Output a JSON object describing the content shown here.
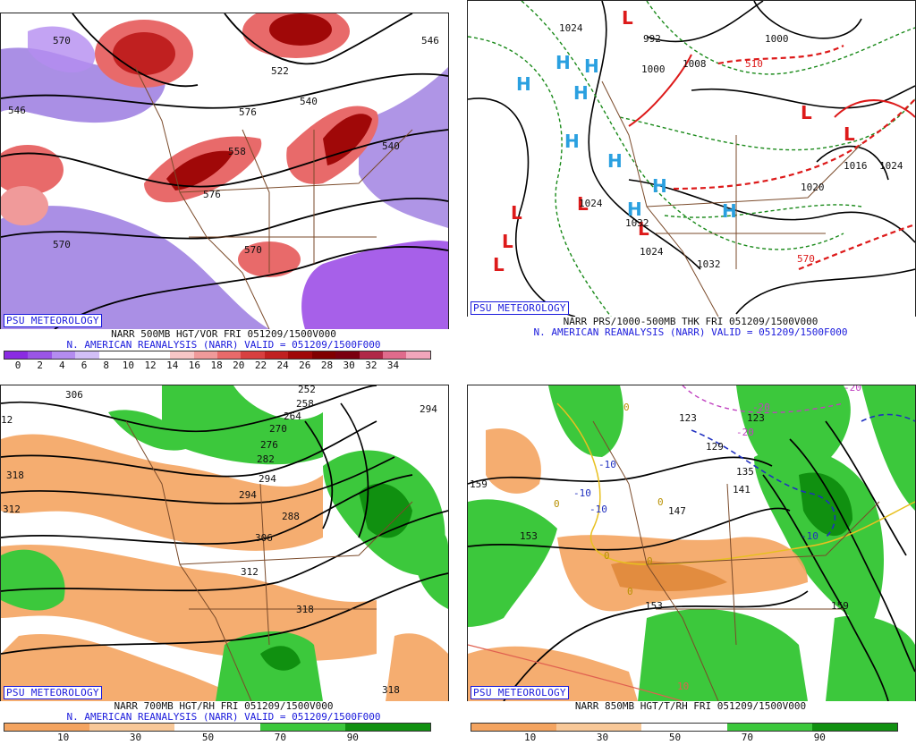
{
  "panels": [
    {
      "credit": "PSU METEOROLOGY",
      "title": "NARR 500MB HGT/VOR FRI 051209/1500V000",
      "subtitle": "N. AMERICAN REANALYSIS (NARR) VALID = 051209/1500F000",
      "colorbar": {
        "ticks": [
          "0",
          "2",
          "4",
          "6",
          "8",
          "10",
          "12",
          "14",
          "16",
          "18",
          "20",
          "22",
          "24",
          "26",
          "28",
          "30",
          "32",
          "34"
        ],
        "colors": [
          "#8a2be2",
          "#9a55e6",
          "#b48cf0",
          "#d2bff7",
          "#ffffff",
          "#ffffff",
          "#ffffff",
          "#f7c6c6",
          "#f09a9a",
          "#e86a6a",
          "#d84040",
          "#c02020",
          "#a00808",
          "#800000",
          "#7a0010",
          "#b02848",
          "#e06b8c",
          "#f2a6bb"
        ]
      },
      "contour_labels": [
        "570",
        "522",
        "546",
        "540",
        "576",
        "558",
        "540",
        "570",
        "576",
        "546",
        "570"
      ]
    },
    {
      "credit": "PSU METEOROLOGY",
      "title": "NARR PRS/1000-500MB THK FRI 051209/1500V000",
      "subtitle": "N. AMERICAN REANALYSIS (NARR) VALID = 051209/1500F000",
      "pressure_labels": [
        "1024",
        "992",
        "1000",
        "1008",
        "1020",
        "1024",
        "1032",
        "1024",
        "1016",
        "1024",
        "1032",
        "1000",
        "510",
        "570"
      ],
      "high_symbol": "H",
      "low_symbol": "L"
    },
    {
      "credit": "PSU METEOROLOGY",
      "title": "NARR 700MB HGT/RH FRI 051209/1500V000",
      "subtitle": "N. AMERICAN REANALYSIS (NARR) VALID = 051209/1500F000",
      "colorbar": {
        "ticks": [
          "10",
          "30",
          "50",
          "70",
          "90"
        ],
        "colors": [
          "#f4a460",
          "#f8c898",
          "#ffffff",
          "#3cc83c",
          "#109010"
        ]
      },
      "contour_labels": [
        "306",
        "12",
        "318",
        "312",
        "294",
        "306",
        "294",
        "282",
        "270",
        "264",
        "258",
        "252",
        "276",
        "288",
        "312",
        "318",
        "318",
        "294"
      ]
    },
    {
      "credit": "PSU METEOROLOGY",
      "title": "NARR 850MB HGT/T/RH FRI 051209/1500V000",
      "subtitle": "",
      "colorbar": {
        "ticks": [
          "10",
          "30",
          "50",
          "70",
          "90"
        ],
        "colors": [
          "#f4a460",
          "#f8c898",
          "#ffffff",
          "#3cc83c",
          "#109010"
        ]
      },
      "contour_labels": [
        "159",
        "123",
        "129",
        "141",
        "147",
        "153",
        "159",
        "153",
        "123",
        "135"
      ],
      "temp_labels": [
        "-20",
        "-20",
        "-20",
        "-10",
        "-10",
        "-10",
        "-10",
        "0",
        "0",
        "0",
        "0",
        "0",
        "0",
        "10"
      ]
    }
  ]
}
